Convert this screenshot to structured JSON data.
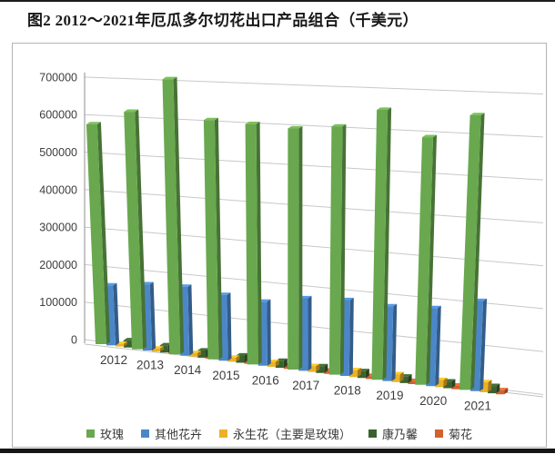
{
  "page": {
    "title": "图2 2012～2021年厄瓜多尔切花出口产品组合（千美元）"
  },
  "chart_data": {
    "type": "bar",
    "style": "3d-perspective-columns",
    "title": "图2 2012～2021年厄瓜多尔切花出口产品组合（千美元）",
    "value_unit": "千美元",
    "categories": [
      "2012",
      "2013",
      "2014",
      "2015",
      "2016",
      "2017",
      "2018",
      "2019",
      "2020",
      "2021"
    ],
    "series": [
      {
        "name": "玫瑰",
        "color": "#69a84e",
        "values": [
          575000,
          609000,
          692000,
          590000,
          581000,
          571000,
          576000,
          614000,
          552000,
          600000
        ]
      },
      {
        "name": "其他花卉",
        "color": "#4b87c8",
        "values": [
          157000,
          170000,
          173000,
          162000,
          155000,
          172000,
          176000,
          170000,
          174000,
          197000
        ]
      },
      {
        "name": "永生花（主要是玫瑰）",
        "color": "#ebb127",
        "values": [
          7000,
          8000,
          9000,
          10000,
          12000,
          14000,
          16000,
          18000,
          16000,
          22000
        ]
      },
      {
        "name": "康乃馨",
        "color": "#39622e",
        "values": [
          19000,
          19000,
          18000,
          18000,
          17000,
          16000,
          16000,
          15000,
          15000,
          16000
        ]
      },
      {
        "name": "菊花",
        "color": "#d2612e",
        "values": [
          9000,
          9000,
          10000,
          9000,
          8000,
          8000,
          7000,
          7000,
          8000,
          9000
        ]
      }
    ],
    "ylim": [
      0,
      700000
    ],
    "y_ticks": [
      "0",
      "100000",
      "200000",
      "300000",
      "400000",
      "500000",
      "600000",
      "700000"
    ],
    "grid": true,
    "legend_position": "bottom",
    "axis_text_color": "#3d3d3d",
    "gridline_color": "#c8c8c8"
  }
}
